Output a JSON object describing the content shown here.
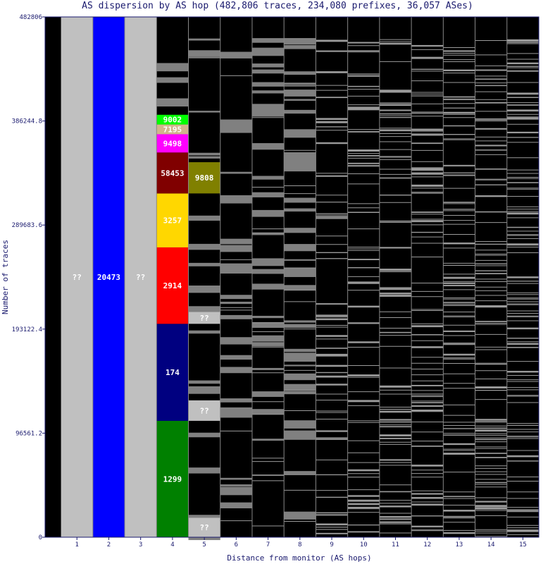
{
  "chart_data": {
    "type": "stacked-bar",
    "title": "AS dispersion by AS hop (482,806 traces, 234,080 prefixes, 36,057 ASes)",
    "xlabel": "Distance from monitor (AS hops)",
    "ylabel": "Number of traces",
    "ylim": [
      0,
      482806
    ],
    "yticks": [
      "0",
      "96561.2",
      "193122.4",
      "289683.6",
      "386244.8",
      "482806"
    ],
    "xticks": [
      "1",
      "2",
      "3",
      "4",
      "5",
      "6",
      "7",
      "8",
      "9",
      "10",
      "11",
      "12",
      "13",
      "14",
      "15"
    ],
    "colors": {
      "background": "#000000",
      "other_as": "#808080",
      "unknown": "#c0c0c0",
      "divider": "#9a9a9a",
      "axis_text": "#1a1a6e"
    },
    "segments": [
      {
        "hop": 1,
        "label": "??",
        "from": 0,
        "to": 482806,
        "color": "#c0c0c0"
      },
      {
        "hop": 2,
        "label": "20473",
        "from": 0,
        "to": 482806,
        "color": "#0000ff"
      },
      {
        "hop": 3,
        "label": "??",
        "from": 0,
        "to": 482806,
        "color": "#c0c0c0"
      },
      {
        "hop": 4,
        "label": "1299",
        "from": 0,
        "to": 108000,
        "color": "#008000"
      },
      {
        "hop": 4,
        "label": "174",
        "from": 108000,
        "to": 198000,
        "color": "#000080"
      },
      {
        "hop": 4,
        "label": "2914",
        "from": 198000,
        "to": 269000,
        "color": "#ff0000"
      },
      {
        "hop": 4,
        "label": "3257",
        "from": 269000,
        "to": 319000,
        "color": "#ffd700"
      },
      {
        "hop": 4,
        "label": "58453",
        "from": 319000,
        "to": 357000,
        "color": "#800000"
      },
      {
        "hop": 4,
        "label": "9498",
        "from": 357000,
        "to": 374000,
        "color": "#ff00ff"
      },
      {
        "hop": 4,
        "label": "7195",
        "from": 374000,
        "to": 383000,
        "color": "#d2b48c"
      },
      {
        "hop": 4,
        "label": "9002",
        "from": 383000,
        "to": 392000,
        "color": "#00ff00"
      },
      {
        "hop": 5,
        "label": "9808",
        "from": 319000,
        "to": 348000,
        "color": "#808000"
      },
      {
        "hop": 5,
        "label": "??",
        "from": 0,
        "to": 18000,
        "color": "#c0c0c0"
      },
      {
        "hop": 5,
        "label": "??",
        "from": 108000,
        "to": 127000,
        "color": "#c0c0c0"
      },
      {
        "hop": 5,
        "label": "??",
        "from": 198000,
        "to": 209000,
        "color": "#c0c0c0"
      }
    ]
  }
}
